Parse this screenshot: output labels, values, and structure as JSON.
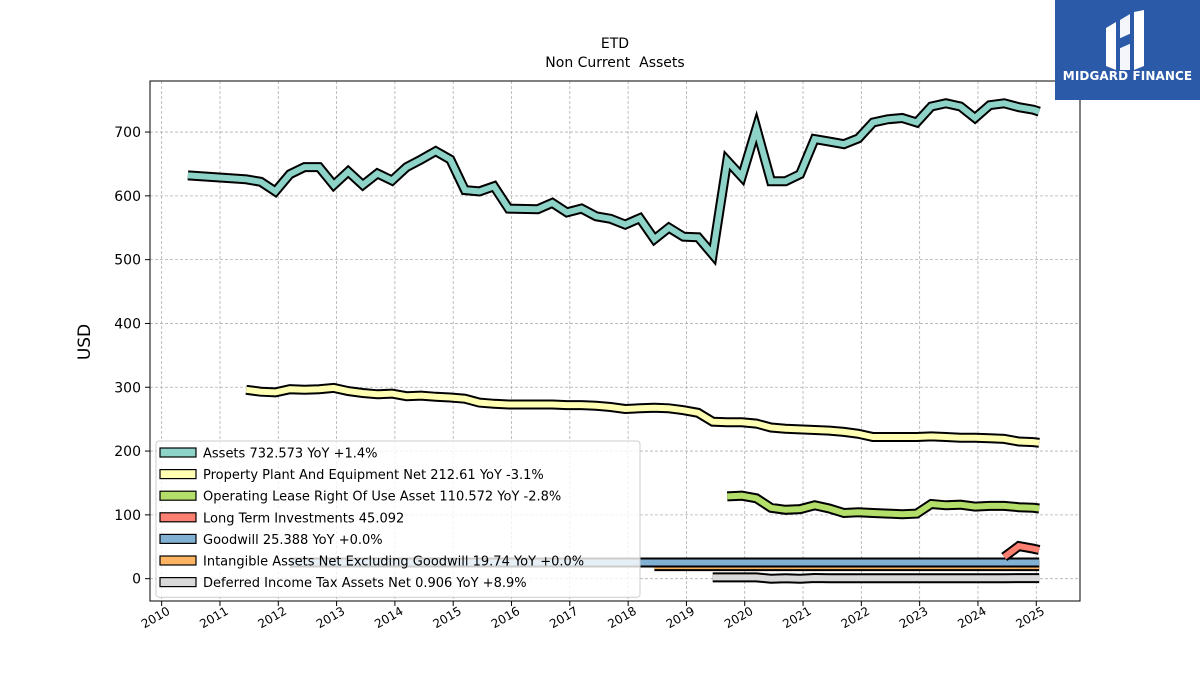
{
  "brand": {
    "name": "MIDGARD FINANCE",
    "logo_icon": "midgard-mark-icon",
    "color": "#2b5aa8"
  },
  "chart_data": {
    "type": "line",
    "title": "ETD",
    "subtitle": "Non Current  Assets",
    "ylabel": "USD",
    "xlabel": "",
    "xlim": [
      2009.8,
      2025.75
    ],
    "ylim": [
      -35,
      780
    ],
    "yticks": [
      0,
      100,
      200,
      300,
      400,
      500,
      600,
      700
    ],
    "xticks": [
      "2010",
      "2011",
      "2012",
      "2013",
      "2014",
      "2015",
      "2016",
      "2017",
      "2018",
      "2019",
      "2020",
      "2021",
      "2022",
      "2023",
      "2024",
      "2025"
    ],
    "grid": true,
    "legend_position": "lower-left",
    "series": [
      {
        "name": "Assets",
        "legend": "Assets  732.573 YoY +1.4%",
        "color": "#8dd3c7",
        "x": [
          2010.45,
          2011.45,
          2011.7,
          2011.95,
          2012.2,
          2012.45,
          2012.7,
          2012.95,
          2013.2,
          2013.45,
          2013.7,
          2013.95,
          2014.2,
          2014.45,
          2014.7,
          2014.95,
          2015.2,
          2015.45,
          2015.7,
          2015.95,
          2016.45,
          2016.7,
          2016.95,
          2017.2,
          2017.45,
          2017.7,
          2017.95,
          2018.2,
          2018.45,
          2018.7,
          2018.95,
          2019.2,
          2019.45,
          2019.7,
          2019.95,
          2020.2,
          2020.45,
          2020.7,
          2020.95,
          2021.2,
          2021.45,
          2021.7,
          2021.95,
          2022.2,
          2022.45,
          2022.7,
          2022.95,
          2023.2,
          2023.45,
          2023.7,
          2023.95,
          2024.2,
          2024.45,
          2024.7,
          2024.95,
          2025.05
        ],
        "values": [
          632,
          626,
          622,
          607,
          634,
          645,
          645,
          617,
          638,
          617,
          635,
          624,
          645,
          657,
          670,
          657,
          609,
          607,
          615,
          580,
          579,
          589,
          574,
          580,
          568,
          564,
          555,
          565,
          532,
          550,
          536,
          535,
          508,
          655,
          630,
          706,
          623,
          623,
          634,
          689,
          685,
          681,
          690,
          715,
          720,
          722,
          715,
          740,
          745,
          740,
          722,
          742,
          745,
          739,
          735,
          732
        ]
      },
      {
        "name": "Property Plant And Equipment Net",
        "legend": "Property Plant And Equipment Net  212.61 YoY -3.1%",
        "color": "#ffffb3",
        "x": [
          2011.45,
          2011.7,
          2011.95,
          2012.2,
          2012.45,
          2012.7,
          2012.95,
          2013.2,
          2013.45,
          2013.7,
          2013.95,
          2014.2,
          2014.45,
          2014.7,
          2014.95,
          2015.2,
          2015.45,
          2015.7,
          2015.95,
          2016.45,
          2016.7,
          2016.95,
          2017.2,
          2017.45,
          2017.7,
          2017.95,
          2018.2,
          2018.45,
          2018.7,
          2018.95,
          2019.2,
          2019.45,
          2019.7,
          2019.95,
          2020.2,
          2020.45,
          2020.7,
          2020.95,
          2021.2,
          2021.45,
          2021.7,
          2021.95,
          2022.2,
          2022.45,
          2022.7,
          2022.95,
          2023.2,
          2023.45,
          2023.7,
          2023.95,
          2024.2,
          2024.45,
          2024.7,
          2024.95,
          2025.05
        ],
        "values": [
          296,
          293,
          292,
          297,
          296,
          297,
          299,
          294,
          291,
          289,
          290,
          286,
          287,
          285,
          284,
          282,
          276,
          274,
          273,
          273,
          273,
          272,
          272,
          271,
          269,
          266,
          267,
          268,
          267,
          264,
          260,
          246,
          245,
          245,
          243,
          237,
          235,
          234,
          233,
          232,
          230,
          227,
          222,
          222,
          222,
          222,
          223,
          222,
          221,
          221,
          220,
          219,
          215,
          214,
          213
        ]
      },
      {
        "name": "Operating Lease Right Of Use Asset",
        "legend": "Operating Lease Right Of Use Asset  110.572 YoY -2.8%",
        "color": "#b3de69",
        "x": [
          2019.7,
          2019.95,
          2020.2,
          2020.45,
          2020.7,
          2020.95,
          2021.2,
          2021.45,
          2021.7,
          2021.95,
          2022.2,
          2022.45,
          2022.7,
          2022.95,
          2023.2,
          2023.45,
          2023.7,
          2023.95,
          2024.2,
          2024.45,
          2024.7,
          2024.95,
          2025.05
        ],
        "values": [
          129,
          130,
          126,
          111,
          108,
          109,
          115,
          110,
          103,
          104,
          103,
          102,
          101,
          102,
          117,
          115,
          116,
          113,
          114,
          114,
          112,
          111,
          110
        ]
      },
      {
        "name": "Long Term Investments",
        "legend": "Long Term Investments  45.092",
        "color": "#fb8072",
        "x": [
          2024.45,
          2024.7,
          2024.95,
          2025.05
        ],
        "values": [
          34,
          51,
          47,
          45
        ]
      },
      {
        "name": "Goodwill",
        "legend": "Goodwill  25.388 YoY +0.0%",
        "color": "#80b1d3",
        "x": [
          2012.2,
          2025.05
        ],
        "values": [
          25.4,
          25.4
        ]
      },
      {
        "name": "Intangible Assets Net Excluding Goodwill",
        "legend": "Intangible Assets Net Excluding Goodwill  19.74 YoY +0.0%",
        "color": "#fdb462",
        "x": [
          2018.45,
          2025.05
        ],
        "values": [
          19.7,
          19.7
        ]
      },
      {
        "name": "Deferred Income Tax Assets Net",
        "legend": "Deferred Income Tax Assets Net  0.906 YoY +8.9%",
        "color": "#d9d9d9",
        "x": [
          2019.45,
          2020.2,
          2020.45,
          2020.7,
          2020.95,
          2021.2,
          2021.45,
          2021.7,
          2021.95,
          2022.45,
          2022.95,
          2023.45,
          2023.95,
          2024.45,
          2024.95,
          2025.05
        ],
        "values": [
          2,
          2,
          0,
          0.5,
          0,
          1,
          0.5,
          0.5,
          0.7,
          0.5,
          0.7,
          0.6,
          0.8,
          0.8,
          0.9,
          0.9
        ]
      }
    ]
  }
}
